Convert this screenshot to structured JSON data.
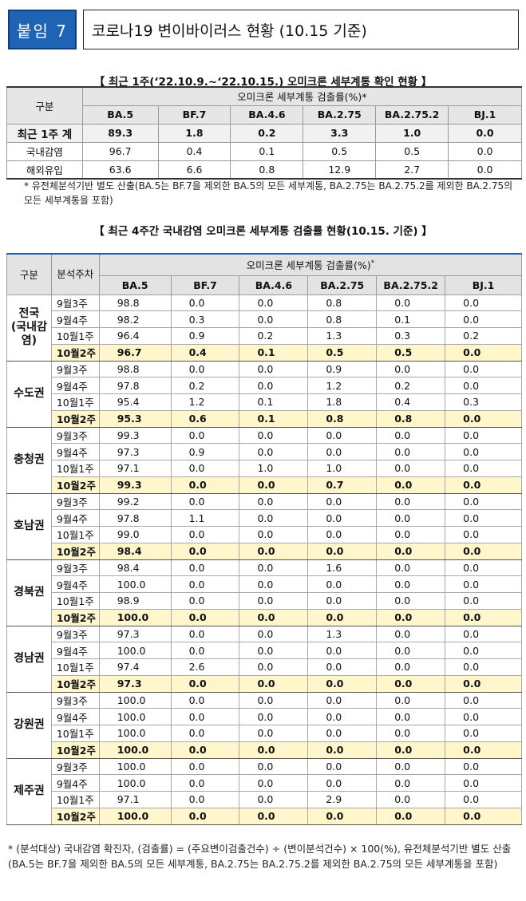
{
  "header": {
    "badge": "붙임 7",
    "title": "코로나19 변이바이러스 현황 (10.15 기준)"
  },
  "section1": {
    "title": "【 최근 1주(‘22.10.9.~‘22.10.15.) 오미크론 세부계통 확인 현황 】",
    "col_group": "구분",
    "rate_header": "오미크론 세부계통 검출률(%)*",
    "variants": [
      "BA.5",
      "BF.7",
      "BA.4.6",
      "BA.2.75",
      "BA.2.75.2",
      "BJ.1"
    ],
    "rows": [
      {
        "label": "최근 1주 계",
        "values": [
          "89.3",
          "1.8",
          "0.2",
          "3.3",
          "1.0",
          "0.0"
        ]
      },
      {
        "label": "국내감염",
        "values": [
          "96.7",
          "0.4",
          "0.1",
          "0.5",
          "0.5",
          "0.0"
        ]
      },
      {
        "label": "해외유입",
        "values": [
          "63.6",
          "6.6",
          "0.8",
          "12.9",
          "2.7",
          "0.0"
        ]
      }
    ],
    "note": "* 유전체분석기반 별도 산출(BA.5는 BF.7을 제외한 BA.5의 모든 세부계통, BA.2.75는 BA.2.75.2를 제외한 BA.2.75의 모든 세부계통을 포함)"
  },
  "section2": {
    "title": "【 최근 4주간 국내감염 오미크론 세부계통 검출률 현황(10.15. 기준) 】",
    "col_group": "구분",
    "col_week": "분석주차",
    "rate_header": "오미크론 세부계통 검출률(%)",
    "rate_sup": "*",
    "variants": [
      "BA.5",
      "BF.7",
      "BA.4.6",
      "BA.2.75",
      "BA.2.75.2",
      "BJ.1"
    ],
    "regions": [
      {
        "name": "전국\n(국내감염)",
        "rows": [
          {
            "week": "9월3주",
            "values": [
              "98.8",
              "0.0",
              "0.0",
              "0.8",
              "0.0",
              "0.0"
            ]
          },
          {
            "week": "9월4주",
            "values": [
              "98.2",
              "0.3",
              "0.0",
              "0.8",
              "0.1",
              "0.0"
            ]
          },
          {
            "week": "10월1주",
            "values": [
              "96.4",
              "0.9",
              "0.2",
              "1.3",
              "0.3",
              "0.2"
            ]
          },
          {
            "week": "10월2주",
            "values": [
              "96.7",
              "0.4",
              "0.1",
              "0.5",
              "0.5",
              "0.0"
            ]
          }
        ]
      },
      {
        "name": "수도권",
        "rows": [
          {
            "week": "9월3주",
            "values": [
              "98.8",
              "0.0",
              "0.0",
              "0.9",
              "0.0",
              "0.0"
            ]
          },
          {
            "week": "9월4주",
            "values": [
              "97.8",
              "0.2",
              "0.0",
              "1.2",
              "0.2",
              "0.0"
            ]
          },
          {
            "week": "10월1주",
            "values": [
              "95.4",
              "1.2",
              "0.1",
              "1.8",
              "0.4",
              "0.3"
            ]
          },
          {
            "week": "10월2주",
            "values": [
              "95.3",
              "0.6",
              "0.1",
              "0.8",
              "0.8",
              "0.0"
            ]
          }
        ]
      },
      {
        "name": "충청권",
        "rows": [
          {
            "week": "9월3주",
            "values": [
              "99.3",
              "0.0",
              "0.0",
              "0.0",
              "0.0",
              "0.0"
            ]
          },
          {
            "week": "9월4주",
            "values": [
              "97.3",
              "0.9",
              "0.0",
              "0.0",
              "0.0",
              "0.0"
            ]
          },
          {
            "week": "10월1주",
            "values": [
              "97.1",
              "0.0",
              "1.0",
              "1.0",
              "0.0",
              "0.0"
            ]
          },
          {
            "week": "10월2주",
            "values": [
              "99.3",
              "0.0",
              "0.0",
              "0.7",
              "0.0",
              "0.0"
            ]
          }
        ]
      },
      {
        "name": "호남권",
        "rows": [
          {
            "week": "9월3주",
            "values": [
              "99.2",
              "0.0",
              "0.0",
              "0.0",
              "0.0",
              "0.0"
            ]
          },
          {
            "week": "9월4주",
            "values": [
              "97.8",
              "1.1",
              "0.0",
              "0.0",
              "0.0",
              "0.0"
            ]
          },
          {
            "week": "10월1주",
            "values": [
              "99.0",
              "0.0",
              "0.0",
              "0.0",
              "0.0",
              "0.0"
            ]
          },
          {
            "week": "10월2주",
            "values": [
              "98.4",
              "0.0",
              "0.0",
              "0.0",
              "0.0",
              "0.0"
            ]
          }
        ]
      },
      {
        "name": "경북권",
        "rows": [
          {
            "week": "9월3주",
            "values": [
              "98.4",
              "0.0",
              "0.0",
              "1.6",
              "0.0",
              "0.0"
            ]
          },
          {
            "week": "9월4주",
            "values": [
              "100.0",
              "0.0",
              "0.0",
              "0.0",
              "0.0",
              "0.0"
            ]
          },
          {
            "week": "10월1주",
            "values": [
              "98.9",
              "0.0",
              "0.0",
              "0.0",
              "0.0",
              "0.0"
            ]
          },
          {
            "week": "10월2주",
            "values": [
              "100.0",
              "0.0",
              "0.0",
              "0.0",
              "0.0",
              "0.0"
            ]
          }
        ]
      },
      {
        "name": "경남권",
        "rows": [
          {
            "week": "9월3주",
            "values": [
              "97.3",
              "0.0",
              "0.0",
              "1.3",
              "0.0",
              "0.0"
            ]
          },
          {
            "week": "9월4주",
            "values": [
              "100.0",
              "0.0",
              "0.0",
              "0.0",
              "0.0",
              "0.0"
            ]
          },
          {
            "week": "10월1주",
            "values": [
              "97.4",
              "2.6",
              "0.0",
              "0.0",
              "0.0",
              "0.0"
            ]
          },
          {
            "week": "10월2주",
            "values": [
              "97.3",
              "0.0",
              "0.0",
              "0.0",
              "0.0",
              "0.0"
            ]
          }
        ]
      },
      {
        "name": "강원권",
        "rows": [
          {
            "week": "9월3주",
            "values": [
              "100.0",
              "0.0",
              "0.0",
              "0.0",
              "0.0",
              "0.0"
            ]
          },
          {
            "week": "9월4주",
            "values": [
              "100.0",
              "0.0",
              "0.0",
              "0.0",
              "0.0",
              "0.0"
            ]
          },
          {
            "week": "10월1주",
            "values": [
              "100.0",
              "0.0",
              "0.0",
              "0.0",
              "0.0",
              "0.0"
            ]
          },
          {
            "week": "10월2주",
            "values": [
              "100.0",
              "0.0",
              "0.0",
              "0.0",
              "0.0",
              "0.0"
            ]
          }
        ]
      },
      {
        "name": "제주권",
        "rows": [
          {
            "week": "9월3주",
            "values": [
              "100.0",
              "0.0",
              "0.0",
              "0.0",
              "0.0",
              "0.0"
            ]
          },
          {
            "week": "9월4주",
            "values": [
              "100.0",
              "0.0",
              "0.0",
              "0.0",
              "0.0",
              "0.0"
            ]
          },
          {
            "week": "10월1주",
            "values": [
              "97.1",
              "0.0",
              "0.0",
              "2.9",
              "0.0",
              "0.0"
            ]
          },
          {
            "week": "10월2주",
            "values": [
              "100.0",
              "0.0",
              "0.0",
              "0.0",
              "0.0",
              "0.0"
            ]
          }
        ]
      }
    ],
    "note": "* (분석대상) 국내감염 확진자, (검출률) = (주요변이검출건수) ÷ (변이분석건수) × 100(%), 유전체분석기반 별도 산출(BA.5는 BF.7을 제외한 BA.5의 모든 세부계통, BA.2.75는 BA.2.75.2를 제외한 BA.2.75의 모든 세부계통을 포함)"
  },
  "colors": {
    "badge": "#1f63b5",
    "header_gray": "#e3e3e3",
    "highlight_row": "#fff6cc",
    "blue_rule": "#1f5fb0"
  }
}
